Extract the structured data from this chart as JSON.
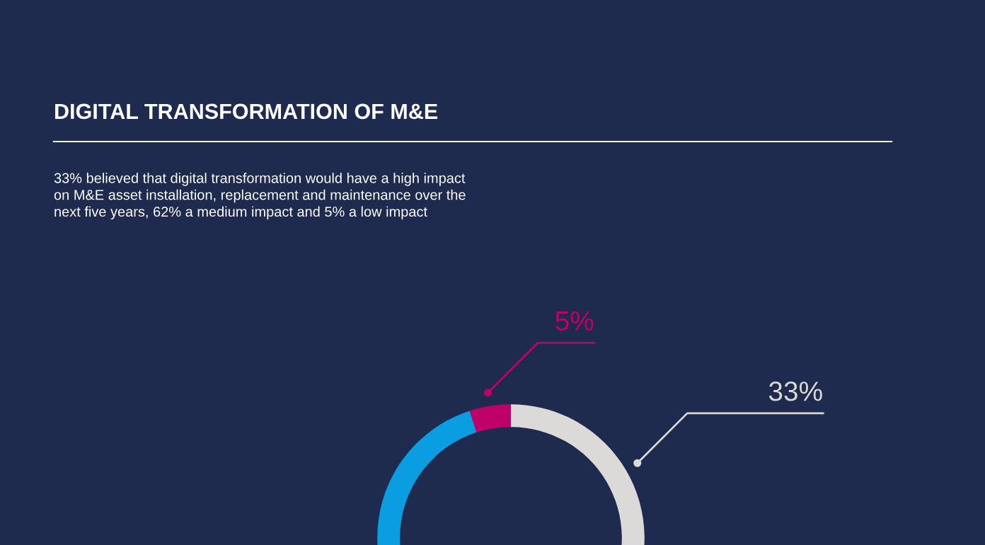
{
  "chart_data": {
    "type": "donut",
    "title": "DIGITAL TRANSFORMATION OF M&E",
    "subtitle": "33% believed that digital transformation would have a high impact\non M&E asset installation, replacement and maintenance over the\nnext five years, 62% a medium impact and 5% a low impact",
    "categories": [
      null,
      null,
      null
    ],
    "values": [
      33,
      62,
      5
    ],
    "colors": [
      "#dcdad8",
      "#0a9ee0",
      "#c0006a"
    ],
    "value_labels": [
      "33%",
      null,
      "5%"
    ]
  }
}
